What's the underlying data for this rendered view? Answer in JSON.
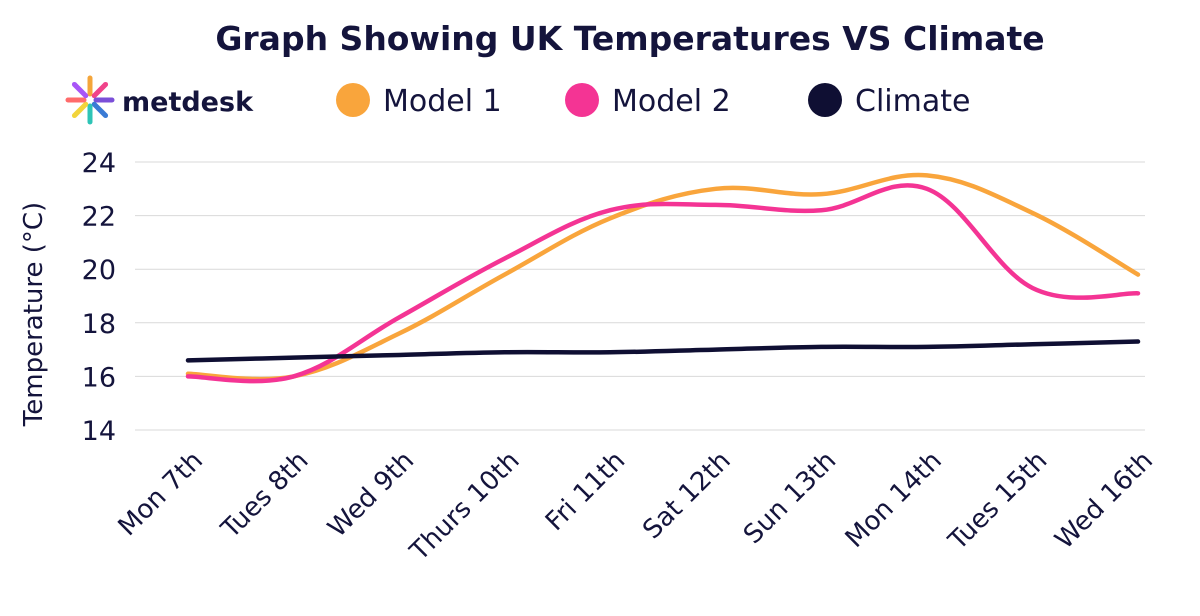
{
  "brand": {
    "name": "metdesk",
    "petal_colors": [
      "#f4a53a",
      "#f0438a",
      "#7b4fd8",
      "#3a7bd5",
      "#2ec4b6",
      "#f2d43b",
      "#ff6b6b",
      "#a855f7"
    ]
  },
  "chart_data": {
    "type": "line",
    "title": "Graph Showing UK Temperatures VS Climate",
    "xlabel": "",
    "ylabel": "Temperature (°C)",
    "ylim": [
      14,
      24
    ],
    "yticks": [
      14,
      16,
      18,
      20,
      22,
      24
    ],
    "grid": true,
    "legend_position": "top",
    "categories": [
      "Mon 7th",
      "Tues 8th",
      "Wed 9th",
      "Thurs 10th",
      "Fri 11th",
      "Sat 12th",
      "Sun 13th",
      "Mon 14th",
      "Tues 15th",
      "Wed 16th"
    ],
    "series": [
      {
        "name": "Model 1",
        "color": "#f9a53c",
        "values": [
          16.1,
          16.0,
          17.6,
          19.8,
          21.9,
          23.0,
          22.8,
          23.5,
          22.1,
          19.8
        ]
      },
      {
        "name": "Model 2",
        "color": "#f43494",
        "values": [
          16.0,
          16.0,
          18.2,
          20.4,
          22.2,
          22.4,
          22.2,
          23.0,
          19.3,
          19.1
        ]
      },
      {
        "name": "Climate",
        "color": "#0f0f33",
        "values": [
          16.6,
          16.7,
          16.8,
          16.9,
          16.9,
          17.0,
          17.1,
          17.1,
          17.2,
          17.3
        ]
      }
    ]
  }
}
